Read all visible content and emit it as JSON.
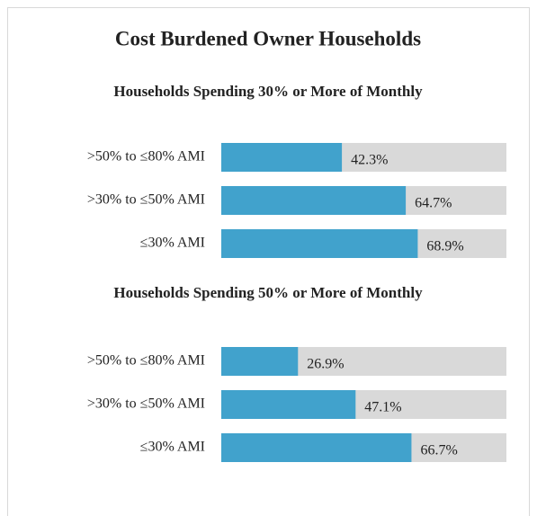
{
  "title": "Cost Burdened Owner Households",
  "chart_data": [
    {
      "type": "bar",
      "subtitle": "Households Spending 30% or More of Monthly",
      "categories": [
        ">50% to ≤80% AMI",
        ">30% to ≤50% AMI",
        "≤30% AMI"
      ],
      "values": [
        42.3,
        64.7,
        68.9
      ],
      "value_labels": [
        "42.3%",
        "64.7%",
        "68.9%"
      ],
      "xlim": [
        0,
        100
      ],
      "color": "#41a2cc",
      "track_color": "#d9d9d9"
    },
    {
      "type": "bar",
      "subtitle": "Households Spending 50% or More of Monthly",
      "categories": [
        ">50% to ≤80% AMI",
        ">30% to ≤50% AMI",
        "≤30% AMI"
      ],
      "values": [
        26.9,
        47.1,
        66.7
      ],
      "value_labels": [
        "26.9%",
        "47.1%",
        "66.7%"
      ],
      "xlim": [
        0,
        100
      ],
      "color": "#41a2cc",
      "track_color": "#d9d9d9"
    }
  ]
}
